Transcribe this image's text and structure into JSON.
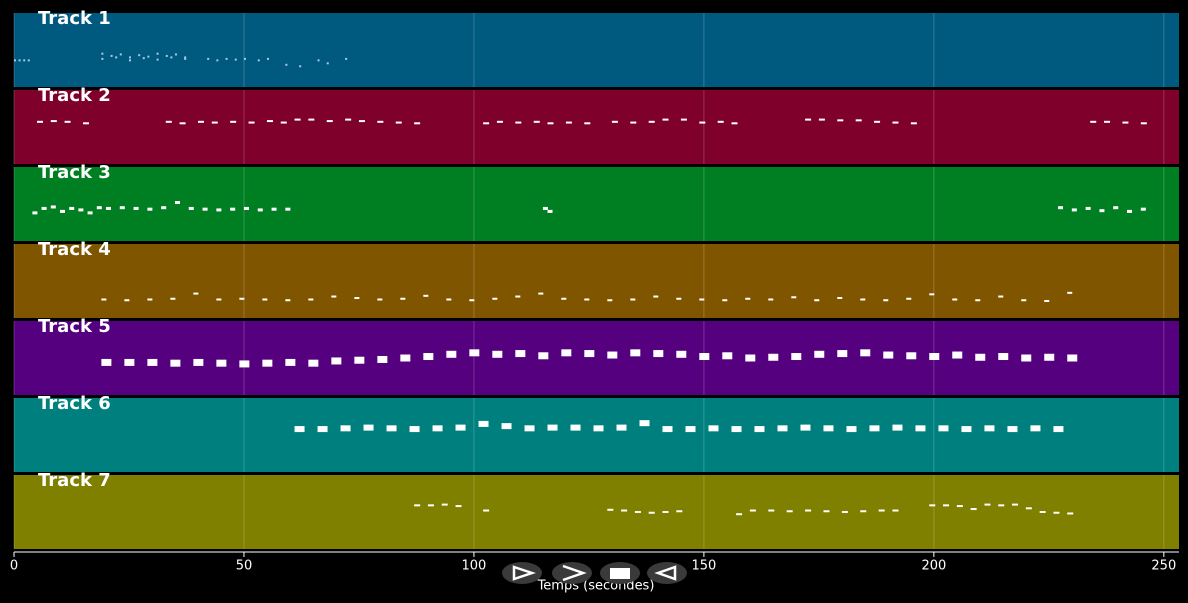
{
  "chart_data": {
    "type": "pianoroll",
    "xlabel": "Temps (secondes)",
    "xlim": [
      0,
      253.3
    ],
    "xticks": [
      0,
      50,
      100,
      150,
      200,
      250
    ],
    "ylim": [
      0,
      100
    ],
    "grid": true,
    "series": [
      {
        "name": "Track 1",
        "color": "#005a80",
        "note_color": "#a9c9e6",
        "x": [
          0,
          1,
          2,
          3,
          19,
          21,
          23,
          25,
          27,
          29,
          31,
          33,
          35,
          37,
          19,
          22,
          25,
          28,
          31,
          34,
          37,
          42,
          44,
          46,
          48,
          50,
          53,
          55,
          59,
          62,
          66,
          68,
          72
        ],
        "values": [
          36,
          36,
          36,
          36,
          45,
          42,
          44,
          40,
          43,
          41,
          45,
          42,
          44,
          40,
          38,
          40,
          36,
          39,
          37,
          40,
          38,
          38,
          36,
          38,
          37,
          38,
          36,
          38,
          30,
          28,
          36,
          32,
          38
        ]
      },
      {
        "name": "Track 2",
        "color": "#7f002a",
        "note_color": "#ffffff",
        "x": [
          5,
          8,
          11,
          15,
          33,
          36,
          40,
          43,
          47,
          51,
          55,
          58,
          61,
          64,
          68,
          72,
          75,
          79,
          83,
          87,
          102,
          105,
          109,
          113,
          116,
          120,
          124,
          130,
          134,
          138,
          141,
          145,
          149,
          153,
          156,
          172,
          175,
          179,
          183,
          187,
          191,
          195,
          234,
          237,
          241,
          245
        ],
        "values": [
          57,
          58,
          57,
          55,
          57,
          55,
          57,
          56,
          57,
          56,
          58,
          56,
          60,
          60,
          58,
          60,
          58,
          57,
          56,
          55,
          55,
          57,
          56,
          57,
          55,
          56,
          55,
          57,
          56,
          57,
          60,
          60,
          56,
          57,
          55,
          60,
          60,
          59,
          59,
          57,
          56,
          55,
          57,
          57,
          56,
          55
        ]
      },
      {
        "name": "Track 3",
        "color": "#007f22",
        "note_color": "#ffffff",
        "x": [
          4,
          6,
          8,
          10,
          12,
          14,
          16,
          18,
          20,
          23,
          26,
          29,
          32,
          35,
          38,
          41,
          44,
          47,
          50,
          53,
          56,
          59,
          115,
          116,
          227,
          230,
          233,
          236,
          239,
          242,
          245
        ],
        "values": [
          38,
          44,
          46,
          40,
          44,
          42,
          38,
          45,
          44,
          45,
          44,
          43,
          45,
          52,
          44,
          43,
          42,
          43,
          44,
          42,
          43,
          43,
          44,
          40,
          45,
          42,
          44,
          41,
          45,
          40,
          43
        ]
      },
      {
        "name": "Track 4",
        "color": "#7f5500",
        "note_color": "#ffffff",
        "x": [
          19,
          24,
          29,
          34,
          39,
          44,
          49,
          54,
          59,
          64,
          69,
          74,
          79,
          84,
          89,
          94,
          99,
          104,
          109,
          114,
          119,
          124,
          129,
          134,
          139,
          144,
          149,
          154,
          159,
          164,
          169,
          174,
          179,
          184,
          189,
          194,
          199,
          204,
          209,
          214,
          219,
          224,
          229
        ],
        "values": [
          25,
          24,
          25,
          26,
          33,
          25,
          26,
          25,
          24,
          25,
          29,
          27,
          25,
          26,
          30,
          25,
          24,
          26,
          29,
          33,
          26,
          25,
          24,
          25,
          29,
          26,
          25,
          24,
          26,
          25,
          28,
          24,
          27,
          25,
          24,
          26,
          32,
          25,
          24,
          29,
          24,
          23,
          34
        ]
      },
      {
        "name": "Track 5",
        "color": "#55007f",
        "note_color": "#ffffff",
        "x": [
          19,
          24,
          29,
          34,
          39,
          44,
          49,
          54,
          59,
          64,
          69,
          74,
          79,
          84,
          89,
          94,
          99,
          104,
          109,
          114,
          119,
          124,
          129,
          134,
          139,
          144,
          149,
          154,
          159,
          164,
          169,
          174,
          179,
          184,
          189,
          194,
          199,
          204,
          209,
          214,
          219,
          224,
          229
        ],
        "values": [
          44,
          44,
          44,
          43,
          44,
          43,
          42,
          43,
          44,
          43,
          46,
          47,
          48,
          50,
          52,
          55,
          57,
          55,
          56,
          53,
          57,
          56,
          54,
          57,
          56,
          55,
          52,
          53,
          50,
          51,
          52,
          55,
          56,
          57,
          54,
          53,
          52,
          54,
          51,
          52,
          50,
          51,
          50
        ]
      },
      {
        "name": "Track 6",
        "color": "#007f7f",
        "note_color": "#ffffff",
        "x": [
          61,
          66,
          71,
          76,
          81,
          86,
          91,
          96,
          101,
          106,
          111,
          116,
          121,
          126,
          131,
          136,
          141,
          146,
          151,
          156,
          161,
          166,
          171,
          176,
          181,
          186,
          191,
          196,
          201,
          206,
          211,
          216,
          221,
          226
        ],
        "values": [
          58,
          58,
          59,
          60,
          59,
          58,
          59,
          60,
          65,
          62,
          59,
          60,
          60,
          59,
          60,
          66,
          58,
          58,
          59,
          58,
          58,
          59,
          60,
          59,
          58,
          59,
          60,
          59,
          59,
          58,
          59,
          58,
          59,
          58
        ]
      },
      {
        "name": "Track 7",
        "color": "#7f7f00",
        "note_color": "#ffffff",
        "x": [
          87,
          90,
          93,
          96,
          102,
          129,
          132,
          135,
          138,
          141,
          144,
          157,
          160,
          164,
          168,
          172,
          176,
          180,
          184,
          188,
          191,
          199,
          202,
          205,
          208,
          211,
          214,
          217,
          220,
          223,
          226,
          229
        ],
        "values": [
          59,
          59,
          60,
          58,
          52,
          53,
          52,
          50,
          49,
          50,
          51,
          47,
          52,
          52,
          51,
          52,
          51,
          50,
          51,
          52,
          52,
          59,
          59,
          58,
          54,
          60,
          59,
          60,
          55,
          50,
          49,
          48
        ]
      }
    ]
  }
}
